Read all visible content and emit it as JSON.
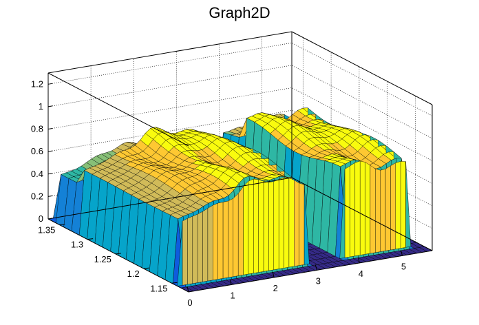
{
  "chart_data": {
    "type": "surface",
    "title": "Graph2D",
    "xlabel": "",
    "ylabel": "",
    "zlabel": "",
    "xlim": [
      0,
      5.7
    ],
    "ylim": [
      1.12,
      1.37
    ],
    "zlim": [
      0,
      1.3
    ],
    "x_ticks": [
      "0",
      "1",
      "2",
      "3",
      "4",
      "5"
    ],
    "y_ticks": [
      "1.35",
      "1.3",
      "1.25",
      "1.2",
      "1.15"
    ],
    "z_ticks": [
      "0",
      "0.2",
      "0.4",
      "0.6",
      "0.8",
      "1",
      "1.2"
    ],
    "grid": true,
    "palette": [
      "#352a87",
      "#0f5cdd",
      "#1481d6",
      "#06a4ca",
      "#2eb7a4",
      "#87bf77",
      "#d1bb59",
      "#fec832",
      "#f9fb0e"
    ],
    "surface": {
      "x_range": [
        0,
        5.7
      ],
      "y_range": [
        1.12,
        1.37
      ],
      "plateau_z": 0.78,
      "edge_z": 0.55,
      "gaps_x": [
        [
          0.0,
          0.05
        ],
        [
          3.0,
          3.9
        ]
      ]
    }
  }
}
